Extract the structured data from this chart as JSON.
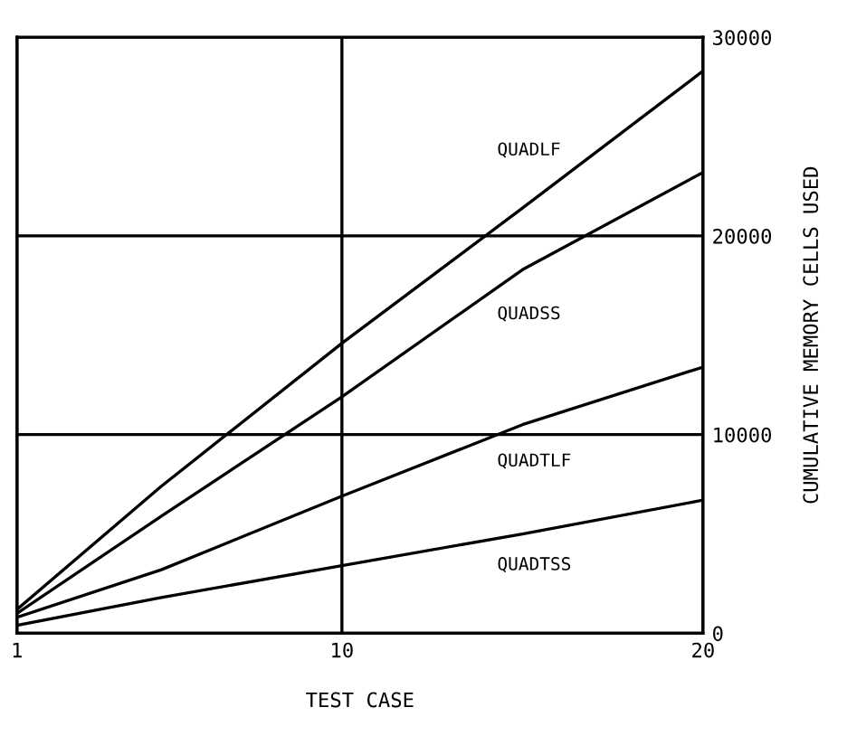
{
  "chart_data": {
    "type": "line",
    "xlabel": "TEST CASE",
    "ylabel": "CUMULATIVE MEMORY CELLS USED",
    "xlim": [
      1,
      20
    ],
    "xticks": [
      1,
      10,
      20
    ],
    "ylim": [
      0,
      30000
    ],
    "yticks": [
      0,
      10000,
      20000,
      30000
    ],
    "grid": true,
    "legend": false,
    "x": [
      1,
      5,
      10,
      15,
      20
    ],
    "series": [
      {
        "name": "QUADLF",
        "color": "#000000",
        "values": [
          1200,
          7400,
          14600,
          21400,
          28300
        ]
      },
      {
        "name": "QUADSS",
        "color": "#000000",
        "values": [
          1000,
          5900,
          11900,
          18300,
          23200
        ]
      },
      {
        "name": "QUADTLF",
        "color": "#000000",
        "values": [
          800,
          3200,
          6900,
          10500,
          13400
        ]
      },
      {
        "name": "QUADTSS",
        "color": "#000000",
        "values": [
          400,
          1800,
          3400,
          5000,
          6700
        ]
      }
    ]
  }
}
